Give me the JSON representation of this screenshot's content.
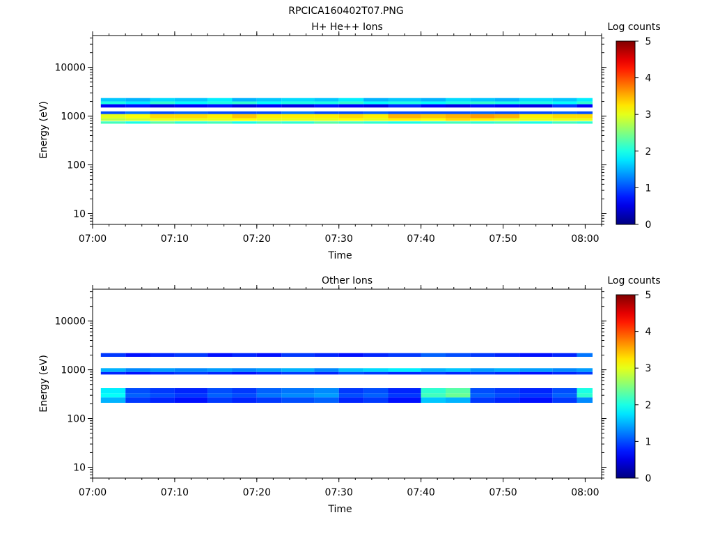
{
  "figure": {
    "title": "RPCICA160402T07.PNG"
  },
  "chart_data": [
    {
      "type": "heatmap",
      "title": "H+ He++ Ions",
      "xlabel": "Time",
      "ylabel": "Energy (eV)",
      "x_range": [
        "07:00",
        "08:02"
      ],
      "y_range": [
        6,
        45000
      ],
      "y_scale": "log",
      "x_tick_labels": [
        "07:00",
        "07:10",
        "07:20",
        "07:30",
        "07:40",
        "07:50",
        "08:00"
      ],
      "y_tick_labels": [
        "10",
        "100",
        "1000",
        "10000"
      ],
      "colorbar": {
        "label": "Log counts",
        "range": [
          0,
          5
        ],
        "ticks": [
          "0",
          "1",
          "2",
          "3",
          "4",
          "5"
        ]
      },
      "time_bin_starts": [
        "07:01",
        "07:04",
        "07:07",
        "07:10",
        "07:14",
        "07:17",
        "07:20",
        "07:23",
        "07:27",
        "07:30",
        "07:33",
        "07:36",
        "07:40",
        "07:43",
        "07:46",
        "07:49",
        "07:52",
        "07:56",
        "07:59"
      ],
      "bands": [
        {
          "e_low": 900,
          "e_high": 1100,
          "values": [
            3.0,
            3.1,
            3.3,
            3.3,
            3.2,
            3.4,
            3.2,
            3.2,
            3.2,
            3.3,
            3.2,
            3.5,
            3.4,
            3.5,
            3.6,
            3.5,
            3.2,
            3.3,
            3.3
          ]
        },
        {
          "e_low": 800,
          "e_high": 900,
          "values": [
            2.8,
            2.9,
            3.0,
            3.0,
            3.0,
            3.1,
            3.0,
            3.0,
            3.0,
            3.1,
            3.0,
            3.2,
            3.1,
            3.3,
            3.2,
            3.0,
            3.0,
            3.0,
            3.0
          ]
        },
        {
          "e_low": 1100,
          "e_high": 1250,
          "values": [
            1.0,
            1.2,
            1.0,
            1.1,
            1.0,
            1.0,
            1.0,
            1.2,
            1.0,
            1.0,
            1.1,
            1.0,
            1.0,
            1.0,
            1.1,
            1.0,
            1.0,
            1.1,
            1.0
          ]
        },
        {
          "e_low": 700,
          "e_high": 780,
          "values": [
            2.2,
            2.0,
            2.3,
            2.1,
            2.2,
            2.0,
            2.2,
            2.1,
            2.3,
            2.2,
            2.1,
            2.0,
            2.1,
            2.2,
            2.1,
            2.2,
            2.0,
            2.2,
            2.1
          ]
        },
        {
          "e_low": 1750,
          "e_high": 2000,
          "values": [
            2.0,
            1.8,
            2.1,
            1.9,
            2.0,
            2.1,
            1.9,
            2.0,
            2.0,
            2.1,
            1.9,
            2.0,
            1.9,
            2.0,
            2.1,
            2.0,
            2.0,
            1.9,
            2.1
          ]
        },
        {
          "e_low": 2000,
          "e_high": 2350,
          "values": [
            1.6,
            1.5,
            1.7,
            1.6,
            1.8,
            1.5,
            1.6,
            1.7,
            1.6,
            1.8,
            1.5,
            1.6,
            1.5,
            1.7,
            1.6,
            1.5,
            1.7,
            1.6,
            1.8
          ]
        },
        {
          "e_low": 1500,
          "e_high": 1750,
          "values": [
            0.6,
            0.7,
            0.5,
            0.6,
            0.7,
            0.5,
            0.6,
            0.5,
            0.7,
            0.6,
            0.5,
            0.8,
            0.6,
            0.5,
            0.7,
            0.6,
            0.5,
            0.9,
            0.6
          ]
        }
      ]
    },
    {
      "type": "heatmap",
      "title": "Other Ions",
      "xlabel": "Time",
      "ylabel": "Energy (eV)",
      "x_range": [
        "07:00",
        "08:02"
      ],
      "y_range": [
        6,
        45000
      ],
      "y_scale": "log",
      "x_tick_labels": [
        "07:00",
        "07:10",
        "07:20",
        "07:30",
        "07:40",
        "07:50",
        "08:00"
      ],
      "y_tick_labels": [
        "10",
        "100",
        "1000",
        "10000"
      ],
      "colorbar": {
        "label": "Log counts",
        "range": [
          0,
          5
        ],
        "ticks": [
          "0",
          "1",
          "2",
          "3",
          "4",
          "5"
        ]
      },
      "time_bin_starts": [
        "07:01",
        "07:04",
        "07:07",
        "07:10",
        "07:14",
        "07:17",
        "07:20",
        "07:23",
        "07:27",
        "07:30",
        "07:33",
        "07:36",
        "07:40",
        "07:43",
        "07:46",
        "07:49",
        "07:52",
        "07:56",
        "07:59"
      ],
      "bands": [
        {
          "e_low": 900,
          "e_high": 1080,
          "values": [
            1.5,
            1.3,
            1.4,
            1.3,
            1.4,
            1.3,
            1.4,
            1.5,
            1.3,
            1.6,
            1.7,
            1.8,
            1.5,
            1.6,
            1.4,
            1.5,
            1.4,
            1.3,
            1.4
          ]
        },
        {
          "e_low": 800,
          "e_high": 900,
          "values": [
            0.8,
            0.7,
            0.8,
            0.9,
            0.8,
            0.7,
            0.8,
            0.9,
            0.8,
            1.0,
            0.9,
            0.8,
            0.9,
            0.8,
            0.9,
            0.8,
            0.7,
            0.8,
            0.9
          ]
        },
        {
          "e_low": 1850,
          "e_high": 2200,
          "values": [
            0.9,
            0.7,
            0.8,
            0.9,
            0.7,
            0.8,
            0.7,
            0.9,
            0.8,
            0.7,
            0.8,
            0.9,
            1.1,
            1.0,
            0.9,
            0.8,
            0.7,
            0.8,
            1.2
          ]
        },
        {
          "e_low": 330,
          "e_high": 420,
          "values": [
            1.8,
            1.0,
            0.9,
            0.8,
            1.0,
            0.9,
            1.1,
            1.2,
            1.3,
            0.9,
            1.0,
            0.8,
            2.1,
            2.3,
            1.0,
            0.9,
            0.8,
            1.0,
            2.0
          ]
        },
        {
          "e_low": 270,
          "e_high": 330,
          "values": [
            1.9,
            1.1,
            1.0,
            0.9,
            1.1,
            1.0,
            1.2,
            1.3,
            1.4,
            1.0,
            1.1,
            0.9,
            2.2,
            2.4,
            1.1,
            1.0,
            0.9,
            1.1,
            2.1
          ]
        },
        {
          "e_low": 210,
          "e_high": 270,
          "values": [
            1.5,
            0.9,
            0.8,
            0.7,
            0.9,
            0.8,
            0.9,
            1.0,
            1.1,
            0.8,
            0.9,
            0.7,
            1.6,
            1.5,
            0.9,
            0.8,
            0.7,
            0.9,
            1.3
          ]
        }
      ]
    }
  ]
}
